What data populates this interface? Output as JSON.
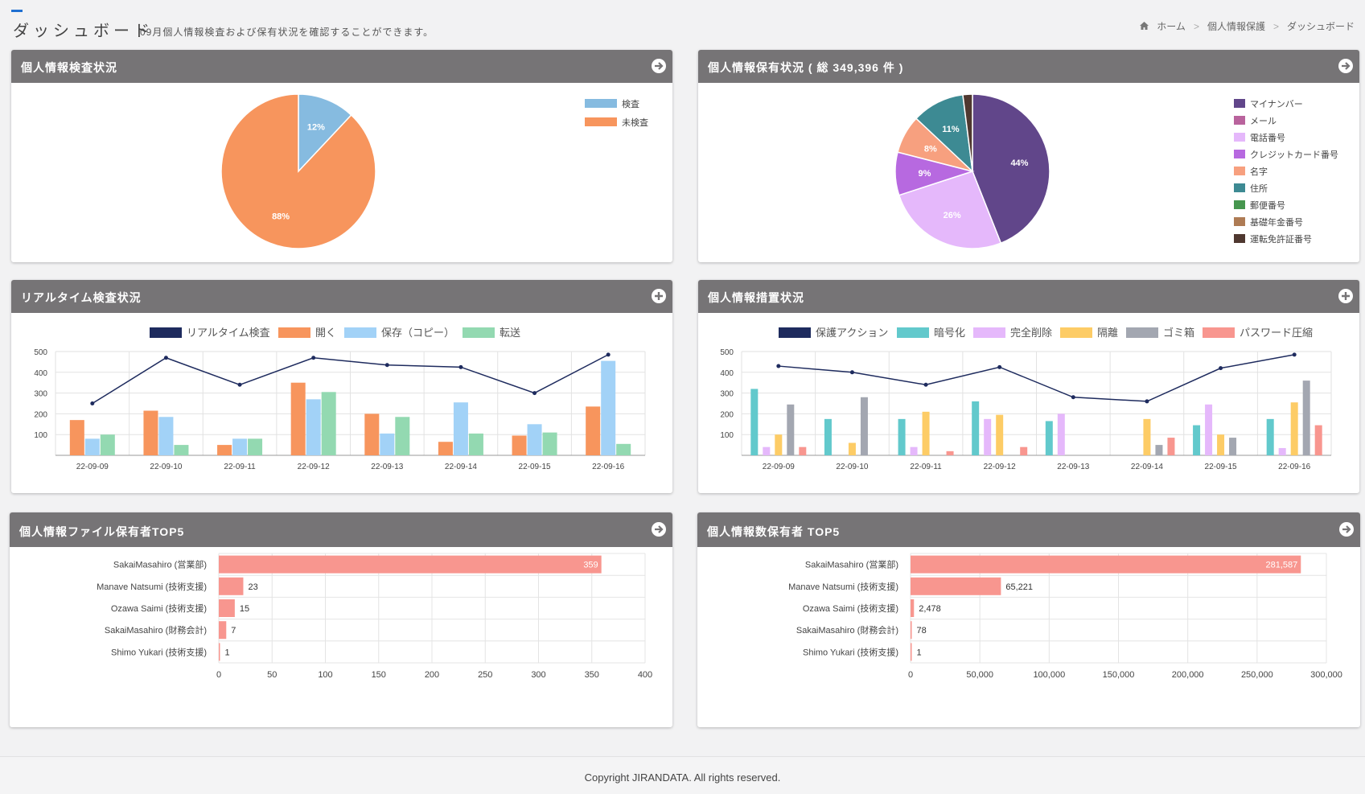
{
  "header": {
    "title": "ダッシュボード",
    "subtitle": "09月個人情報検査および保有状況を確認することができます。",
    "breadcrumb": [
      "ホーム",
      "個人情報保護",
      "ダッシュボード"
    ],
    "breadcrumb_sep": ">"
  },
  "panels": {
    "inspection": {
      "title": "個人情報検査状況"
    },
    "holding": {
      "title": "個人情報保有状況 ( 総 349,396 件 )"
    },
    "realtime": {
      "title": "リアルタイム検査状況"
    },
    "measures": {
      "title": "個人情報措置状況"
    },
    "file_top5": {
      "title": "個人情報ファイル保有者TOP5"
    },
    "count_top5": {
      "title": "個人情報数保有者 TOP5"
    }
  },
  "footer": {
    "copyright": "Copyright JIRANDATA. All rights reserved."
  },
  "colors": {
    "header_bg": "#767476",
    "accent": "#1f6fd1",
    "bar_red": "#f8968f"
  },
  "chart_data": [
    {
      "id": "inspection",
      "type": "pie",
      "labels": [
        "検査",
        "未検査"
      ],
      "values": [
        12,
        88
      ],
      "value_labels": [
        "12%",
        "88%"
      ],
      "colors": [
        "#86bbe0",
        "#f7955d"
      ],
      "legend": "top-right"
    },
    {
      "id": "holding",
      "type": "pie",
      "labels": [
        "マイナンバー",
        "メール",
        "電話番号",
        "クレジットカード番号",
        "名字",
        "住所",
        "郵便番号",
        "基礎年金番号",
        "運転免許証番号"
      ],
      "values": [
        44,
        0,
        26,
        9,
        8,
        11,
        0,
        0,
        2
      ],
      "value_labels": [
        "44%",
        "",
        "26%",
        "9%",
        "8%",
        "11%",
        "",
        "",
        ""
      ],
      "colors": [
        "#61468a",
        "#b9639d",
        "#e5b8fb",
        "#b769e0",
        "#f7a07f",
        "#3d8a93",
        "#46964f",
        "#ae7b54",
        "#4f3830"
      ],
      "legend": "right"
    },
    {
      "id": "realtime",
      "type": "bar",
      "categories": [
        "22-09-09",
        "22-09-10",
        "22-09-11",
        "22-09-12",
        "22-09-13",
        "22-09-14",
        "22-09-15",
        "22-09-16"
      ],
      "ylim": [
        0,
        500
      ],
      "yticks": [
        100,
        200,
        300,
        400,
        500
      ],
      "line": {
        "name": "リアルタイム検査",
        "color": "#1e2b5e",
        "values": [
          250,
          470,
          340,
          470,
          435,
          425,
          300,
          485
        ]
      },
      "series": [
        {
          "name": "開く",
          "color": "#f7955d",
          "values": [
            170,
            215,
            50,
            350,
            200,
            65,
            95,
            235
          ]
        },
        {
          "name": "保存（コピー）",
          "color": "#a2d2f7",
          "values": [
            80,
            185,
            80,
            270,
            105,
            255,
            150,
            455
          ]
        },
        {
          "name": "転送",
          "color": "#93d9b1",
          "values": [
            100,
            50,
            80,
            305,
            185,
            105,
            110,
            55
          ]
        }
      ],
      "legend": "top"
    },
    {
      "id": "measures",
      "type": "bar",
      "categories": [
        "22-09-09",
        "22-09-10",
        "22-09-11",
        "22-09-12",
        "22-09-13",
        "22-09-14",
        "22-09-15",
        "22-09-16"
      ],
      "ylim": [
        0,
        500
      ],
      "yticks": [
        100,
        200,
        300,
        400,
        500
      ],
      "line": {
        "name": "保護アクション",
        "color": "#1e2b5e",
        "values": [
          430,
          400,
          340,
          425,
          280,
          260,
          420,
          485
        ]
      },
      "series": [
        {
          "name": "暗号化",
          "color": "#62c9cc",
          "values": [
            320,
            175,
            175,
            260,
            165,
            0,
            145,
            175
          ]
        },
        {
          "name": "完全削除",
          "color": "#e5b8fb",
          "values": [
            40,
            0,
            40,
            175,
            200,
            0,
            245,
            35
          ]
        },
        {
          "name": "隔離",
          "color": "#fdcc66",
          "values": [
            100,
            60,
            210,
            195,
            0,
            175,
            100,
            255
          ]
        },
        {
          "name": "ゴミ箱",
          "color": "#a3a7b1",
          "values": [
            245,
            280,
            0,
            0,
            0,
            50,
            85,
            360
          ]
        },
        {
          "name": "パスワード圧縮",
          "color": "#f8968f",
          "values": [
            40,
            0,
            20,
            40,
            0,
            85,
            0,
            145
          ]
        }
      ],
      "legend": "top"
    },
    {
      "id": "file_top5",
      "type": "bar",
      "orientation": "horizontal",
      "categories": [
        "SakaiMasahiro (営業部)",
        "Manave Natsumi (技術支援)",
        "Ozawa Saimi (技術支援)",
        "SakaiMasahiro (財務会計)",
        "Shimo Yukari (技術支援)"
      ],
      "values": [
        359,
        23,
        15,
        7,
        1
      ],
      "value_labels": [
        "359",
        "23",
        "15",
        "7",
        "1"
      ],
      "xlim": [
        0,
        400
      ],
      "xticks": [
        "0",
        "50",
        "100",
        "150",
        "200",
        "250",
        "300",
        "350",
        "400"
      ],
      "tick_values": [
        0,
        50,
        100,
        150,
        200,
        250,
        300,
        350,
        400
      ]
    },
    {
      "id": "count_top5",
      "type": "bar",
      "orientation": "horizontal",
      "categories": [
        "SakaiMasahiro (営業部)",
        "Manave Natsumi (技術支援)",
        "Ozawa Saimi (技術支援)",
        "SakaiMasahiro (財務会計)",
        "Shimo Yukari (技術支援)"
      ],
      "values": [
        281587,
        65221,
        2478,
        78,
        1
      ],
      "value_labels": [
        "281,587",
        "65,221",
        "2,478",
        "78",
        "1"
      ],
      "xlim": [
        0,
        300000
      ],
      "xticks": [
        "0",
        "50,000",
        "100,000",
        "150,000",
        "200,000",
        "250,000",
        "300,000"
      ],
      "tick_values": [
        0,
        50000,
        100000,
        150000,
        200000,
        250000,
        300000
      ]
    }
  ]
}
